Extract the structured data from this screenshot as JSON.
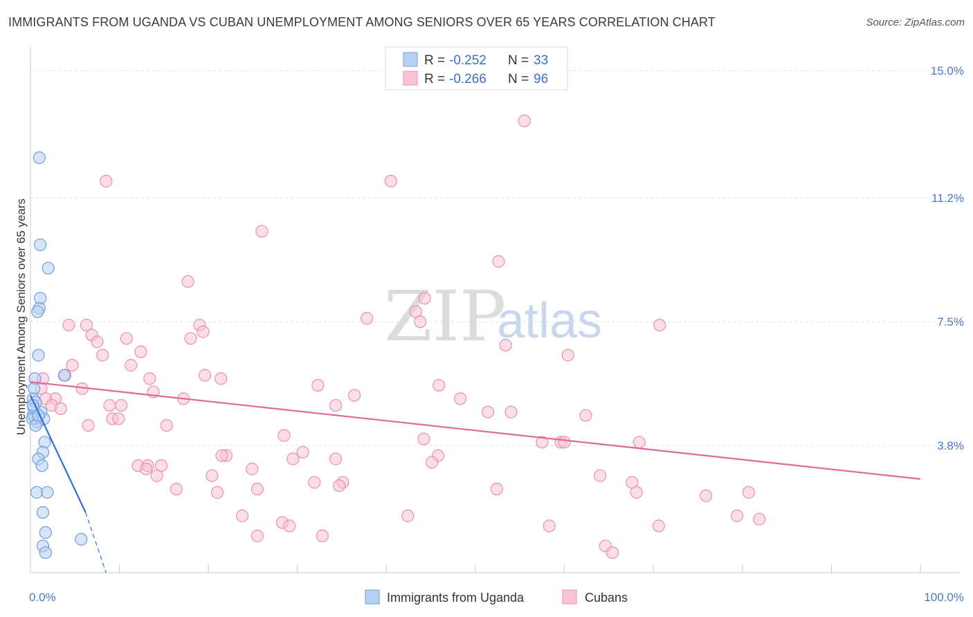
{
  "header": {
    "title": "IMMIGRANTS FROM UGANDA VS CUBAN UNEMPLOYMENT AMONG SENIORS OVER 65 YEARS CORRELATION CHART",
    "source": "Source: ZipAtlas.com"
  },
  "watermark": {
    "zip": "ZIP",
    "atlas": "atlas"
  },
  "legend": {
    "r_label": "R =",
    "n_label": "N =",
    "rows": [
      {
        "name": "Immigrants from Uganda",
        "r": "-0.252",
        "n": "33",
        "fill": "#b8d0f2",
        "stroke": "#6f9ede"
      },
      {
        "name": "Cubans",
        "r": "-0.266",
        "n": "96",
        "fill": "#f8c2d4",
        "stroke": "#ea8fad"
      }
    ]
  },
  "chart_data": {
    "type": "scatter",
    "title": "IMMIGRANTS FROM UGANDA VS CUBAN UNEMPLOYMENT AMONG SENIORS OVER 65 YEARS CORRELATION CHART",
    "xlabel": "",
    "ylabel": "Unemployment Among Seniors over 65 years",
    "xlim": [
      0,
      100
    ],
    "ylim": [
      0,
      15.5
    ],
    "x_tick_labels": [
      "0.0%",
      "100.0%"
    ],
    "y_ticks": [
      3.8,
      7.5,
      11.2,
      15.0
    ],
    "y_tick_labels": [
      "3.8%",
      "7.5%",
      "11.2%",
      "15.0%"
    ],
    "series": [
      {
        "name": "Immigrants from Uganda",
        "color": "#6f9ede",
        "fill": "#b8d0f2",
        "trend_color": "#2e6fd6",
        "trend": {
          "x0": 0,
          "y0": 5.3,
          "x1": 6.2,
          "y1": 1.8,
          "dash_to_x": 8.5,
          "dash_to_y": 0.0
        },
        "points": [
          [
            1.0,
            12.4
          ],
          [
            1.1,
            9.8
          ],
          [
            2.0,
            9.1
          ],
          [
            1.1,
            8.2
          ],
          [
            1.0,
            7.9
          ],
          [
            0.8,
            7.8
          ],
          [
            0.9,
            6.5
          ],
          [
            3.8,
            5.9
          ],
          [
            0.5,
            5.8
          ],
          [
            0.4,
            5.5
          ],
          [
            0.3,
            5.2
          ],
          [
            0.6,
            5.1
          ],
          [
            0.4,
            4.9
          ],
          [
            0.3,
            4.7
          ],
          [
            1.2,
            4.8
          ],
          [
            0.5,
            4.6
          ],
          [
            0.8,
            4.5
          ],
          [
            1.5,
            4.6
          ],
          [
            0.2,
            4.6
          ],
          [
            0.6,
            4.4
          ],
          [
            1.6,
            3.9
          ],
          [
            1.4,
            3.6
          ],
          [
            0.9,
            3.4
          ],
          [
            1.3,
            3.2
          ],
          [
            0.7,
            2.4
          ],
          [
            1.9,
            2.4
          ],
          [
            1.4,
            1.8
          ],
          [
            1.7,
            1.2
          ],
          [
            1.4,
            0.8
          ],
          [
            1.7,
            0.6
          ],
          [
            5.7,
            1.0
          ],
          [
            0.3,
            5.0
          ],
          [
            0.9,
            4.7
          ]
        ]
      },
      {
        "name": "Cubans",
        "color": "#ea8fad",
        "fill": "#f8c2d4",
        "trend_color": "#e0689a",
        "trend": {
          "x0": 0,
          "y0": 5.7,
          "x1": 100,
          "y1": 2.8
        },
        "points": [
          [
            55.5,
            13.5
          ],
          [
            8.5,
            11.7
          ],
          [
            40.5,
            11.7
          ],
          [
            26.0,
            10.2
          ],
          [
            52.6,
            9.3
          ],
          [
            17.7,
            8.7
          ],
          [
            44.3,
            8.2
          ],
          [
            43.3,
            7.8
          ],
          [
            37.8,
            7.6
          ],
          [
            6.3,
            7.4
          ],
          [
            4.3,
            7.4
          ],
          [
            70.7,
            7.4
          ],
          [
            19.0,
            7.4
          ],
          [
            43.8,
            7.5
          ],
          [
            19.4,
            7.2
          ],
          [
            18.0,
            7.0
          ],
          [
            6.9,
            7.1
          ],
          [
            10.8,
            7.0
          ],
          [
            7.5,
            6.9
          ],
          [
            12.4,
            6.6
          ],
          [
            53.4,
            6.8
          ],
          [
            8.1,
            6.5
          ],
          [
            60.4,
            6.5
          ],
          [
            4.7,
            6.2
          ],
          [
            11.3,
            6.2
          ],
          [
            3.9,
            5.9
          ],
          [
            19.6,
            5.9
          ],
          [
            21.4,
            5.8
          ],
          [
            13.4,
            5.8
          ],
          [
            1.4,
            5.8
          ],
          [
            32.3,
            5.6
          ],
          [
            45.9,
            5.6
          ],
          [
            5.8,
            5.5
          ],
          [
            1.2,
            5.5
          ],
          [
            13.8,
            5.4
          ],
          [
            36.4,
            5.3
          ],
          [
            48.3,
            5.2
          ],
          [
            17.2,
            5.2
          ],
          [
            2.8,
            5.2
          ],
          [
            1.7,
            5.2
          ],
          [
            34.3,
            5.0
          ],
          [
            8.9,
            5.0
          ],
          [
            10.2,
            5.0
          ],
          [
            2.4,
            5.0
          ],
          [
            3.4,
            4.9
          ],
          [
            54.0,
            4.8
          ],
          [
            51.4,
            4.8
          ],
          [
            62.4,
            4.7
          ],
          [
            9.2,
            4.6
          ],
          [
            9.9,
            4.6
          ],
          [
            6.5,
            4.4
          ],
          [
            15.3,
            4.4
          ],
          [
            28.5,
            4.1
          ],
          [
            44.2,
            4.0
          ],
          [
            59.6,
            3.9
          ],
          [
            57.5,
            3.9
          ],
          [
            68.4,
            3.9
          ],
          [
            60.0,
            3.9
          ],
          [
            45.8,
            3.5
          ],
          [
            30.6,
            3.6
          ],
          [
            22.0,
            3.5
          ],
          [
            21.5,
            3.5
          ],
          [
            29.5,
            3.4
          ],
          [
            34.3,
            3.4
          ],
          [
            12.1,
            3.2
          ],
          [
            13.2,
            3.2
          ],
          [
            14.7,
            3.2
          ],
          [
            45.1,
            3.3
          ],
          [
            13.0,
            3.1
          ],
          [
            24.9,
            3.1
          ],
          [
            20.4,
            2.9
          ],
          [
            14.2,
            2.9
          ],
          [
            64.0,
            2.9
          ],
          [
            35.1,
            2.7
          ],
          [
            31.9,
            2.7
          ],
          [
            67.6,
            2.7
          ],
          [
            34.7,
            2.6
          ],
          [
            16.4,
            2.5
          ],
          [
            25.5,
            2.5
          ],
          [
            52.4,
            2.5
          ],
          [
            21.0,
            2.4
          ],
          [
            68.1,
            2.4
          ],
          [
            80.7,
            2.4
          ],
          [
            75.9,
            2.3
          ],
          [
            23.8,
            1.7
          ],
          [
            42.4,
            1.7
          ],
          [
            79.4,
            1.7
          ],
          [
            81.9,
            1.6
          ],
          [
            28.3,
            1.5
          ],
          [
            29.1,
            1.4
          ],
          [
            58.3,
            1.4
          ],
          [
            70.6,
            1.4
          ],
          [
            25.5,
            1.1
          ],
          [
            32.8,
            1.1
          ],
          [
            64.6,
            0.8
          ],
          [
            65.4,
            0.6
          ]
        ]
      }
    ]
  }
}
